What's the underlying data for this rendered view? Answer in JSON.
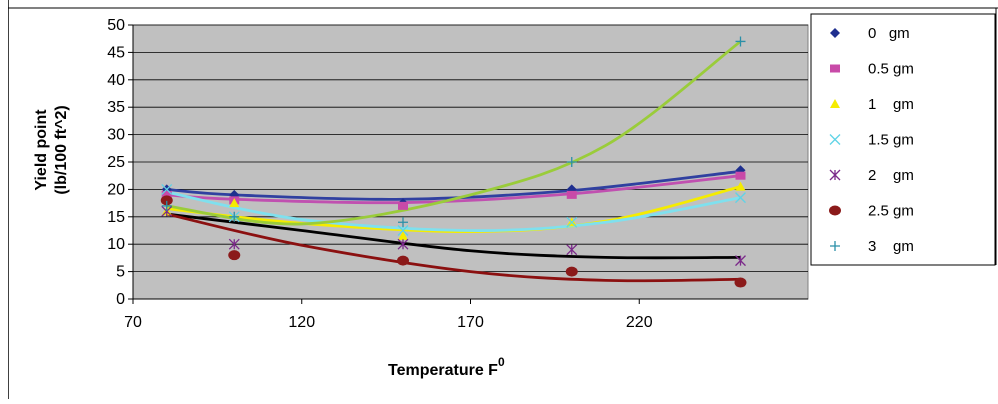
{
  "chart_data": {
    "type": "scatter",
    "xlabel": "Temperature F",
    "xlabel_sup": "0",
    "ylabel_line1": "Yield point",
    "ylabel_line2": "(lb/100 ft^2)",
    "xlim": [
      70,
      270
    ],
    "ylim": [
      0,
      50
    ],
    "xticks": [
      70,
      120,
      170,
      220
    ],
    "yticks": [
      0,
      5,
      10,
      15,
      20,
      25,
      30,
      35,
      40,
      45,
      50
    ],
    "grid": true,
    "legend_position": "right",
    "x": [
      80,
      100,
      150,
      200,
      250
    ],
    "series": [
      {
        "name": "0   gm",
        "marker": "diamond",
        "color": "#1f2f8f",
        "values": [
          20,
          19,
          17.5,
          20,
          23.5
        ],
        "trend": [
          [
            80,
            20
          ],
          [
            100,
            19
          ],
          [
            150,
            18.2
          ],
          [
            200,
            19.8
          ],
          [
            250,
            23.3
          ]
        ]
      },
      {
        "name": "0.5 gm",
        "marker": "square",
        "color": "#c84aa8",
        "values": [
          19,
          18,
          17,
          19,
          22.5
        ],
        "trend": [
          [
            80,
            19
          ],
          [
            100,
            18.2
          ],
          [
            150,
            17.6
          ],
          [
            200,
            19.2
          ],
          [
            250,
            22.5
          ]
        ]
      },
      {
        "name": "1    gm",
        "marker": "triangle",
        "color": "#f5ec00",
        "values": [
          16,
          17.5,
          11.5,
          14,
          20.5
        ],
        "trend": [
          [
            80,
            16.5
          ],
          [
            120,
            13.8
          ],
          [
            170,
            12.3
          ],
          [
            210,
            14.2
          ],
          [
            250,
            20.5
          ]
        ]
      },
      {
        "name": "1.5 gm",
        "marker": "x",
        "color": "#5fd3e6",
        "values": [
          20,
          15,
          12.5,
          14,
          18.5
        ],
        "trend": [
          [
            80,
            19.5
          ],
          [
            120,
            14.5
          ],
          [
            170,
            12.5
          ],
          [
            210,
            14
          ],
          [
            250,
            18.5
          ]
        ]
      },
      {
        "name": "2    gm",
        "marker": "asterisk",
        "color": "#7b2a8a",
        "values": [
          16,
          10,
          10,
          9,
          7
        ],
        "trend": [
          [
            80,
            15.5
          ],
          [
            120,
            12.5
          ],
          [
            170,
            8.8
          ],
          [
            210,
            7.6
          ],
          [
            250,
            7.6
          ]
        ]
      },
      {
        "name": "2.5 gm",
        "marker": "circle",
        "color": "#8b1a1a",
        "values": [
          18,
          8,
          7,
          5,
          3
        ],
        "trend": [
          [
            80,
            15.5
          ],
          [
            120,
            9.8
          ],
          [
            170,
            5
          ],
          [
            210,
            3.4
          ],
          [
            250,
            3.6
          ]
        ]
      },
      {
        "name": "3    gm",
        "marker": "plus",
        "color": "#2a8fa8",
        "values": [
          17,
          15,
          14,
          25,
          47
        ],
        "trend": [
          [
            80,
            17
          ],
          [
            120,
            13.7
          ],
          [
            170,
            19
          ],
          [
            210,
            28
          ],
          [
            250,
            47
          ]
        ]
      }
    ],
    "trend_colors": [
      "#3040a0",
      "#c050b0",
      "#f5ec00",
      "#7fe0ee",
      "#000000",
      "#8b1010",
      "#9acc3a"
    ]
  }
}
